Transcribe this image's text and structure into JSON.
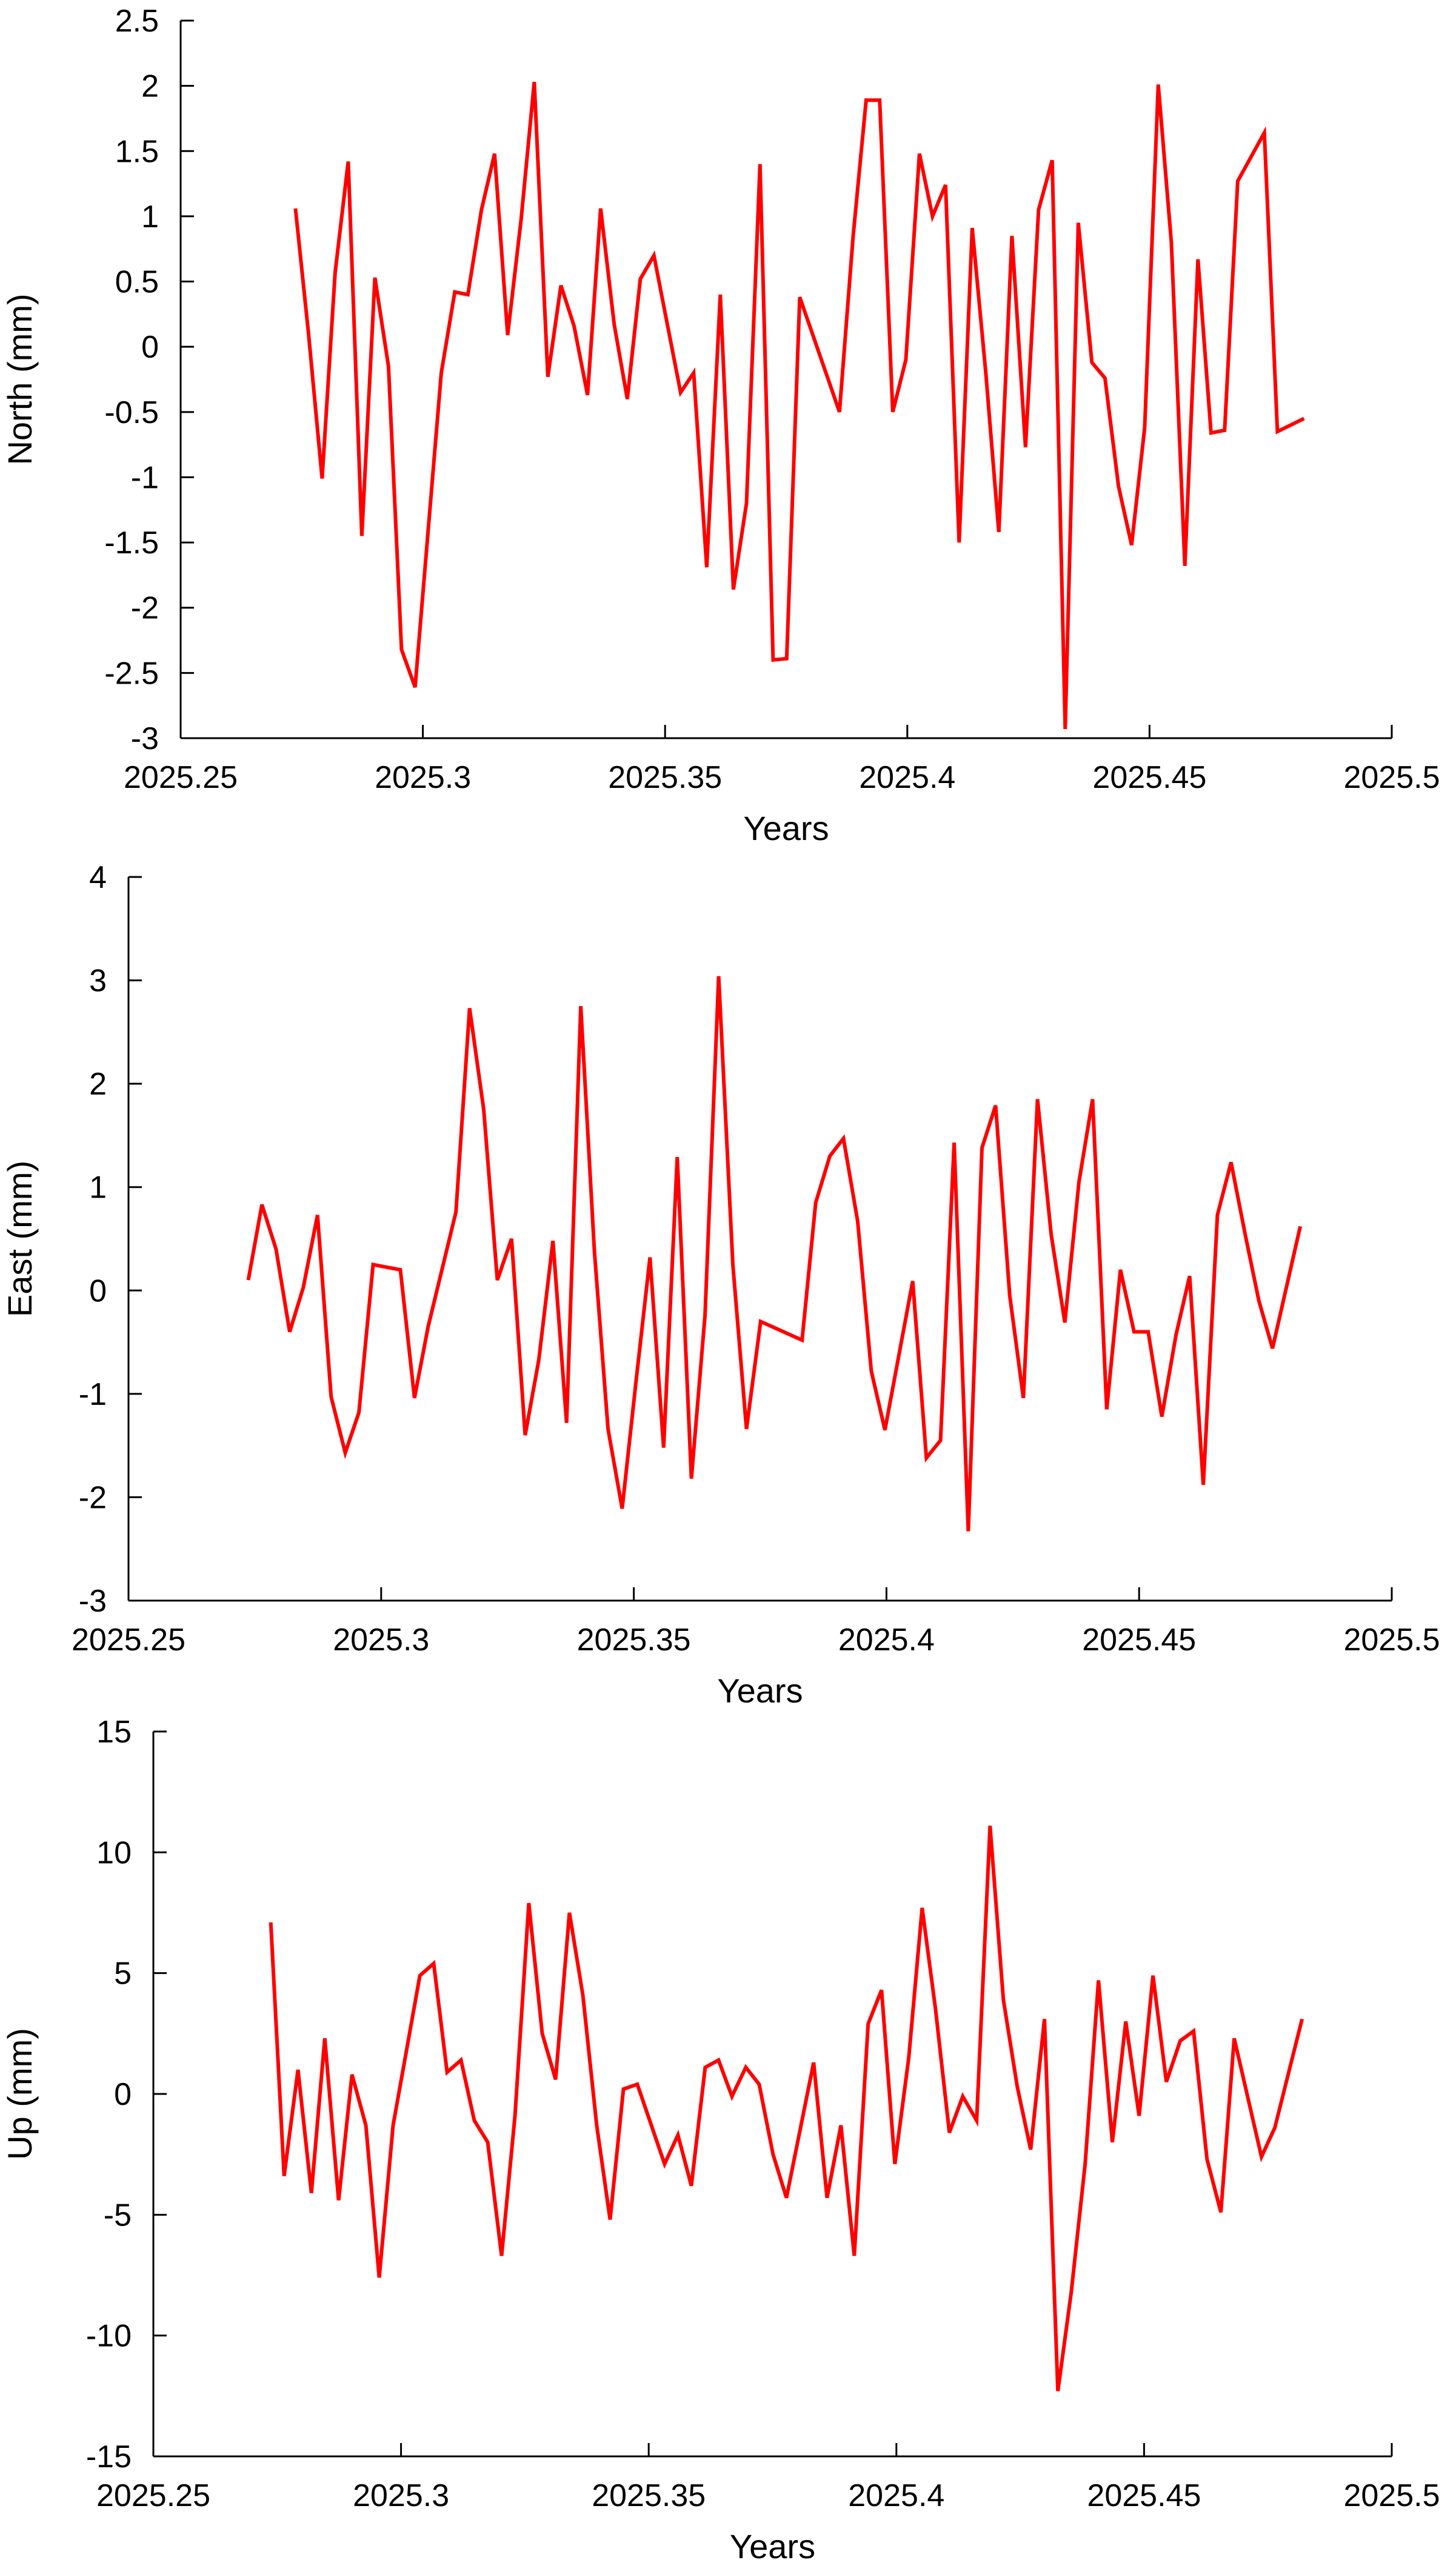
{
  "colors": {
    "series": "#ff0000",
    "axis": "#000000",
    "background": "#ffffff"
  },
  "chart_data": [
    {
      "type": "line",
      "xlabel": "Years",
      "ylabel": "North (mm)",
      "xlim": [
        2025.25,
        2025.5
      ],
      "ylim": [
        -3,
        2.5
      ],
      "grid": false,
      "xticks": [
        2025.25,
        2025.3,
        2025.35,
        2025.4,
        2025.45,
        2025.5
      ],
      "xtick_labels": [
        "2025.25",
        "2025.3",
        "2025.35",
        "2025.4",
        "2025.45",
        "2025.5"
      ],
      "yticks": [
        -3,
        -2.5,
        -2,
        -1.5,
        -1,
        -0.5,
        0,
        0.5,
        1,
        1.5,
        2,
        2.5
      ],
      "ytick_labels": [
        "-3",
        "-2.5",
        "-2",
        "-1.5",
        "-1",
        "-0.5",
        "0",
        "0.5",
        "1",
        "1.5",
        "2",
        "2.5"
      ],
      "series": [
        {
          "x": [
            2025.2737,
            2025.2764,
            2025.2792,
            2025.2819,
            2025.2846,
            2025.2874,
            2025.2901,
            2025.2929,
            2025.2956,
            2025.2984,
            2025.3038,
            2025.3066,
            2025.3093,
            2025.3121,
            2025.3148,
            2025.3175,
            2025.3203,
            2025.323,
            2025.3258,
            2025.3285,
            2025.3312,
            2025.334,
            2025.3367,
            2025.3395,
            2025.3422,
            2025.3449,
            2025.3477,
            2025.3532,
            2025.3559,
            2025.3586,
            2025.3614,
            2025.3641,
            2025.3668,
            2025.3696,
            2025.3723,
            2025.3751,
            2025.3778,
            2025.386,
            2025.3888,
            2025.3915,
            2025.3943,
            2025.397,
            2025.3997,
            2025.4025,
            2025.4052,
            2025.4079,
            2025.4107,
            2025.4134,
            2025.4162,
            2025.4189,
            2025.4216,
            2025.4244,
            2025.4271,
            2025.4299,
            2025.4326,
            2025.4353,
            2025.4381,
            2025.4408,
            2025.4436,
            2025.4463,
            2025.449,
            2025.4518,
            2025.4545,
            2025.4573,
            2025.46,
            2025.4627,
            2025.4655,
            2025.4682,
            2025.4737,
            2025.4764,
            2025.4819
          ],
          "values": [
            1.06,
            0.1,
            -1.01,
            0.57,
            1.42,
            -1.45,
            0.53,
            -0.15,
            -2.32,
            -2.61,
            -0.2,
            0.42,
            0.4,
            1.05,
            1.48,
            0.09,
            0.98,
            2.03,
            -0.23,
            0.47,
            0.16,
            -0.37,
            1.06,
            0.17,
            -0.4,
            0.52,
            0.7,
            -0.35,
            -0.2,
            -1.69,
            0.4,
            -1.86,
            -1.2,
            1.4,
            -2.4,
            -2.39,
            0.38,
            -0.5,
            0.84,
            1.89,
            1.89,
            -0.5,
            -0.1,
            1.48,
            1.0,
            1.24,
            -1.5,
            0.91,
            -0.2,
            -1.42,
            0.85,
            -0.77,
            1.05,
            1.43,
            -2.93,
            0.95,
            -0.12,
            -0.24,
            -1.07,
            -1.52,
            -0.62,
            2.01,
            0.8,
            -1.68,
            0.67,
            -0.66,
            -0.64,
            1.27,
            1.64,
            -0.65,
            -0.55
          ]
        }
      ]
    },
    {
      "type": "line",
      "xlabel": "Years",
      "ylabel": "East (mm)",
      "xlim": [
        2025.25,
        2025.5
      ],
      "ylim": [
        -3,
        4
      ],
      "grid": false,
      "xticks": [
        2025.25,
        2025.3,
        2025.35,
        2025.4,
        2025.45,
        2025.5
      ],
      "xtick_labels": [
        "2025.25",
        "2025.3",
        "2025.35",
        "2025.4",
        "2025.45",
        "2025.5"
      ],
      "yticks": [
        -3,
        -2,
        -1,
        0,
        1,
        2,
        3,
        4
      ],
      "ytick_labels": [
        "-3",
        "-2",
        "-1",
        "0",
        "1",
        "2",
        "3",
        "4"
      ],
      "series": [
        {
          "x": [
            2025.2737,
            2025.2764,
            2025.2792,
            2025.2819,
            2025.2846,
            2025.2874,
            2025.2901,
            2025.2929,
            2025.2956,
            2025.2984,
            2025.3038,
            2025.3066,
            2025.3093,
            2025.3148,
            2025.3175,
            2025.3203,
            2025.323,
            2025.3258,
            2025.3285,
            2025.3312,
            2025.334,
            2025.3367,
            2025.3395,
            2025.3422,
            2025.3449,
            2025.3477,
            2025.3504,
            2025.3532,
            2025.3559,
            2025.3586,
            2025.3614,
            2025.3641,
            2025.3668,
            2025.3696,
            2025.3723,
            2025.3751,
            2025.3833,
            2025.386,
            2025.3888,
            2025.3915,
            2025.3943,
            2025.397,
            2025.3997,
            2025.4052,
            2025.4079,
            2025.4107,
            2025.4134,
            2025.4162,
            2025.4189,
            2025.4216,
            2025.4244,
            2025.4271,
            2025.4299,
            2025.4326,
            2025.4353,
            2025.4381,
            2025.4408,
            2025.4436,
            2025.4463,
            2025.449,
            2025.4518,
            2025.4545,
            2025.4573,
            2025.46,
            2025.4627,
            2025.4655,
            2025.4682,
            2025.471,
            2025.4737,
            2025.4764,
            2025.4819
          ],
          "values": [
            0.1,
            0.83,
            0.4,
            -0.4,
            0.03,
            0.73,
            -1.03,
            -1.57,
            -1.18,
            0.25,
            0.2,
            -1.04,
            -0.35,
            0.76,
            2.73,
            1.75,
            0.1,
            0.5,
            -1.4,
            -0.67,
            0.48,
            -1.28,
            2.75,
            0.38,
            -1.34,
            -2.11,
            -0.9,
            0.32,
            -1.52,
            1.29,
            -1.82,
            -0.24,
            3.04,
            0.25,
            -1.34,
            -0.3,
            -0.48,
            0.85,
            1.3,
            1.47,
            0.67,
            -0.78,
            -1.35,
            0.09,
            -1.62,
            -1.45,
            1.43,
            -2.33,
            1.38,
            1.79,
            -0.05,
            -1.04,
            1.85,
            0.54,
            -0.31,
            1.05,
            1.85,
            -1.15,
            0.2,
            -0.4,
            -0.4,
            -1.22,
            -0.43,
            0.14,
            -1.88,
            0.73,
            1.24,
            0.54,
            -0.1,
            -0.56,
            0.62
          ]
        }
      ]
    },
    {
      "type": "line",
      "xlabel": "Years",
      "ylabel": "Up (mm)",
      "xlim": [
        2025.25,
        2025.5
      ],
      "ylim": [
        -15,
        15
      ],
      "grid": false,
      "xticks": [
        2025.25,
        2025.3,
        2025.35,
        2025.4,
        2025.45,
        2025.5
      ],
      "xtick_labels": [
        "2025.25",
        "2025.3",
        "2025.35",
        "2025.4",
        "2025.45",
        "2025.5"
      ],
      "yticks": [
        -15,
        -10,
        -5,
        0,
        5,
        10,
        15
      ],
      "ytick_labels": [
        "-15",
        "-10",
        "-5",
        "0",
        "5",
        "10",
        "15"
      ],
      "series": [
        {
          "x": [
            2025.2737,
            2025.2764,
            2025.2792,
            2025.2819,
            2025.2846,
            2025.2874,
            2025.2901,
            2025.2929,
            2025.2956,
            2025.2984,
            2025.3038,
            2025.3066,
            2025.3093,
            2025.3121,
            2025.3148,
            2025.3175,
            2025.3203,
            2025.323,
            2025.3258,
            2025.3285,
            2025.3312,
            2025.334,
            2025.3367,
            2025.3395,
            2025.3422,
            2025.3449,
            2025.3477,
            2025.3532,
            2025.3559,
            2025.3586,
            2025.3614,
            2025.3641,
            2025.3668,
            2025.3696,
            2025.3723,
            2025.3751,
            2025.3778,
            2025.3833,
            2025.386,
            2025.3888,
            2025.3915,
            2025.3943,
            2025.397,
            2025.3997,
            2025.4025,
            2025.4052,
            2025.4079,
            2025.4107,
            2025.4134,
            2025.4162,
            2025.4189,
            2025.4216,
            2025.4244,
            2025.4271,
            2025.4299,
            2025.4326,
            2025.4353,
            2025.4381,
            2025.4408,
            2025.4436,
            2025.4463,
            2025.449,
            2025.4518,
            2025.4545,
            2025.4573,
            2025.46,
            2025.4627,
            2025.4655,
            2025.4682,
            2025.4737,
            2025.4764,
            2025.4819
          ],
          "values": [
            7.1,
            -3.4,
            1.0,
            -4.1,
            2.3,
            -4.4,
            0.8,
            -1.3,
            -7.6,
            -1.3,
            4.9,
            5.4,
            0.9,
            1.4,
            -1.1,
            -2.0,
            -6.7,
            -0.9,
            7.9,
            2.5,
            0.6,
            7.5,
            4.1,
            -1.3,
            -5.2,
            0.2,
            0.4,
            -2.9,
            -1.7,
            -3.8,
            1.1,
            1.4,
            -0.1,
            1.1,
            0.4,
            -2.5,
            -4.3,
            1.3,
            -4.3,
            -1.3,
            -6.7,
            2.9,
            4.3,
            -2.9,
            1.5,
            7.7,
            3.5,
            -1.6,
            -0.1,
            -1.1,
            11.1,
            3.9,
            0.3,
            -2.3,
            3.1,
            -12.3,
            -8.2,
            -2.9,
            4.7,
            -2.0,
            3.0,
            -0.9,
            4.9,
            0.5,
            2.2,
            2.6,
            -2.7,
            -4.9,
            2.3,
            -2.6,
            -1.4,
            3.1
          ]
        }
      ]
    }
  ]
}
